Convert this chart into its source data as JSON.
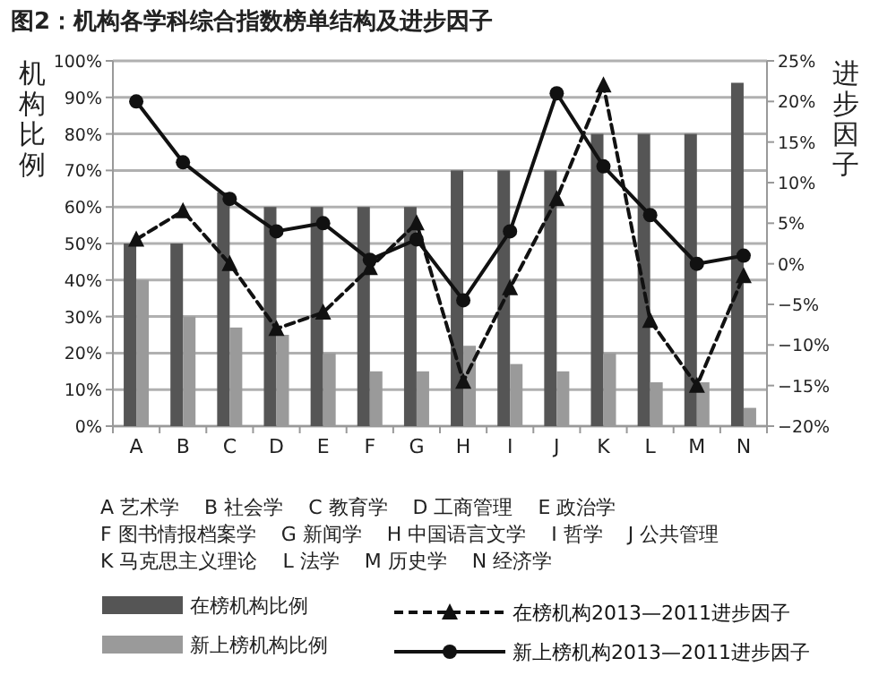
{
  "chart_data": {
    "type": "bar",
    "title": "图2：机构各学科综合指数榜单结构及进步因子",
    "ylabel": "机构比例",
    "y2label": "进步因子",
    "categories": [
      "A",
      "B",
      "C",
      "D",
      "E",
      "F",
      "G",
      "H",
      "I",
      "J",
      "K",
      "L",
      "M",
      "N"
    ],
    "series": [
      {
        "name": "在榜机构比例",
        "color": "#555555",
        "values": [
          50,
          50,
          64,
          60,
          60,
          60,
          60,
          70,
          70,
          70,
          80,
          80,
          80,
          94
        ]
      },
      {
        "name": "新上榜机构比例",
        "color": "#9a9a9a",
        "values": [
          40,
          30,
          27,
          25,
          20,
          15,
          15,
          22,
          17,
          15,
          20,
          12,
          12,
          5
        ]
      },
      {
        "name": "在榜机构2013—2011进步因子",
        "type": "line",
        "axis": "y2",
        "color": "#111111",
        "marker": "triangle",
        "line_style": "dashed",
        "values": [
          3,
          6.5,
          0,
          -8,
          -6,
          -0.5,
          5,
          -14.5,
          -3,
          8,
          22,
          -7,
          -15,
          -1.5
        ]
      },
      {
        "name": "新上榜机构2013—2011进步因子",
        "type": "line",
        "axis": "y2",
        "color": "#111111",
        "marker": "circle",
        "line_style": "solid",
        "values": [
          20,
          12.5,
          8,
          4,
          5,
          0.5,
          3,
          -4.5,
          4,
          21,
          12,
          6,
          0,
          1
        ]
      }
    ],
    "ylim": [
      0,
      100
    ],
    "yticks": [
      {
        "value": 0,
        "label": "0%"
      },
      {
        "value": 10,
        "label": "10%"
      },
      {
        "value": 20,
        "label": "20%"
      },
      {
        "value": 30,
        "label": "30%"
      },
      {
        "value": 40,
        "label": "40%"
      },
      {
        "value": 50,
        "label": "50%"
      },
      {
        "value": 60,
        "label": "60%"
      },
      {
        "value": 70,
        "label": "70%"
      },
      {
        "value": 80,
        "label": "80%"
      },
      {
        "value": 90,
        "label": "90%"
      },
      {
        "value": 100,
        "label": "100%"
      }
    ],
    "y2lim": [
      -20,
      25
    ],
    "y2ticks": [
      {
        "value": -20,
        "label": "−20%"
      },
      {
        "value": -15,
        "label": "−15%"
      },
      {
        "value": -10,
        "label": "−10%"
      },
      {
        "value": -5,
        "label": "−5%"
      },
      {
        "value": 0,
        "label": "0%"
      },
      {
        "value": 5,
        "label": "5%"
      },
      {
        "value": 10,
        "label": "10%"
      },
      {
        "value": 15,
        "label": "15%"
      },
      {
        "value": 20,
        "label": "20%"
      },
      {
        "value": 25,
        "label": "25%"
      }
    ],
    "grid": "y",
    "legend": "bottom",
    "annotations": [
      "A 艺术学",
      "B 社会学",
      "C 教育学",
      "D 工商管理",
      "E 政治学",
      "F 图书情报档案学",
      "G 新闻学",
      "H 中国语言文学",
      "I 哲学",
      "J 公共管理",
      "K 马克思主义理论",
      "L 法学",
      "M 历史学",
      "N 经济学"
    ]
  }
}
